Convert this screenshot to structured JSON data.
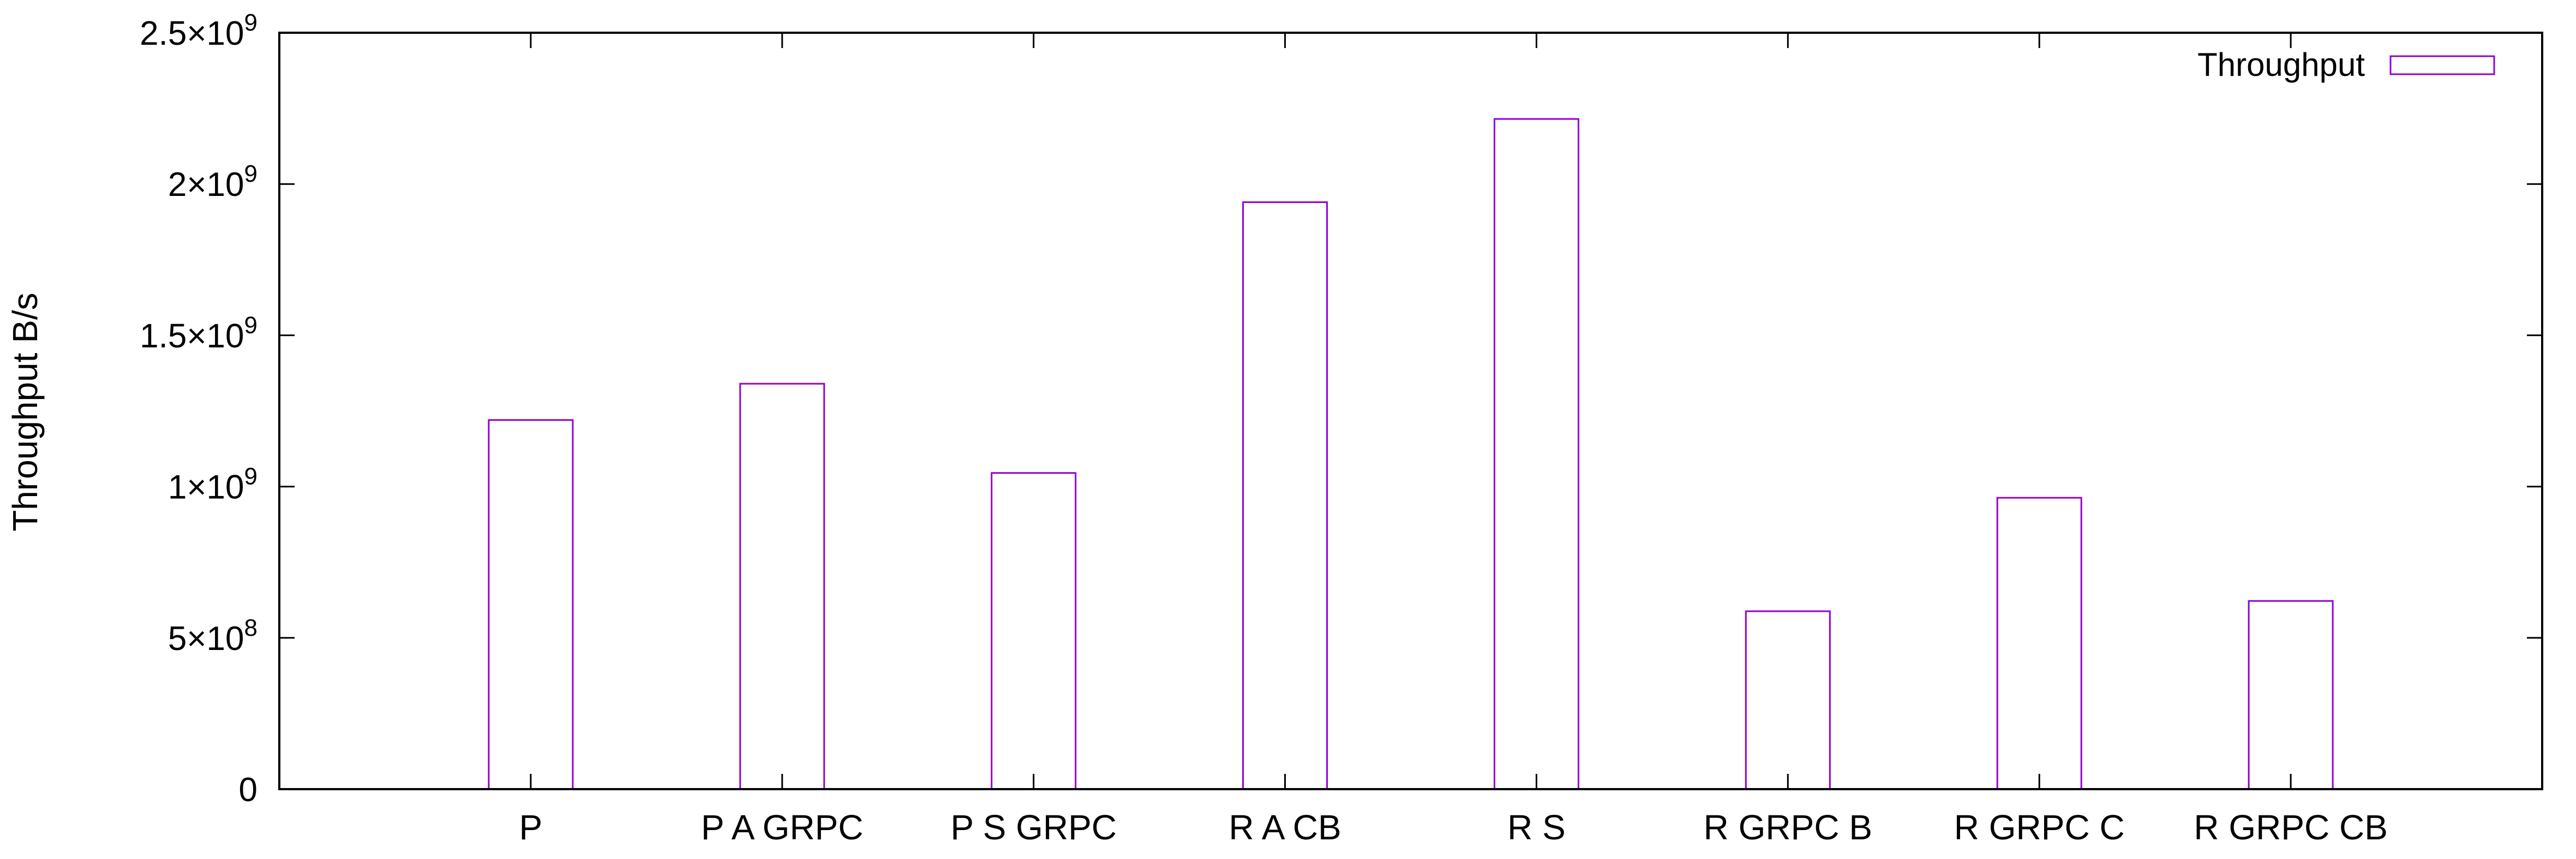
{
  "chart_data": {
    "type": "bar",
    "title": "",
    "xlabel": "",
    "ylabel": "Throughput B/s",
    "categories": [
      "P",
      "P A GRPC",
      "P S GRPC",
      "R A CB",
      "R S",
      "R GRPC B",
      "R GRPC C",
      "R GRPC CB"
    ],
    "series": [
      {
        "name": "Throughput",
        "values": [
          1220000000,
          1340000000,
          1045000000,
          1940000000,
          2215000000,
          588000000,
          963000000,
          622000000
        ]
      }
    ],
    "ylim": [
      0,
      2500000000
    ],
    "yticks": [
      {
        "value": 0,
        "mantissa": "0",
        "exponent": ""
      },
      {
        "value": 500000000,
        "mantissa": "5×10",
        "exponent": "8"
      },
      {
        "value": 1000000000,
        "mantissa": "1×10",
        "exponent": "9"
      },
      {
        "value": 1500000000,
        "mantissa": "1.5×10",
        "exponent": "9"
      },
      {
        "value": 2000000000,
        "mantissa": "2×10",
        "exponent": "9"
      },
      {
        "value": 2500000000,
        "mantissa": "2.5×10",
        "exponent": "9"
      }
    ],
    "grid": false,
    "legend_position": "top-right",
    "bar_style": "outline",
    "colors": {
      "series": "#9400d3",
      "axis": "#000000",
      "background": "#ffffff"
    }
  }
}
